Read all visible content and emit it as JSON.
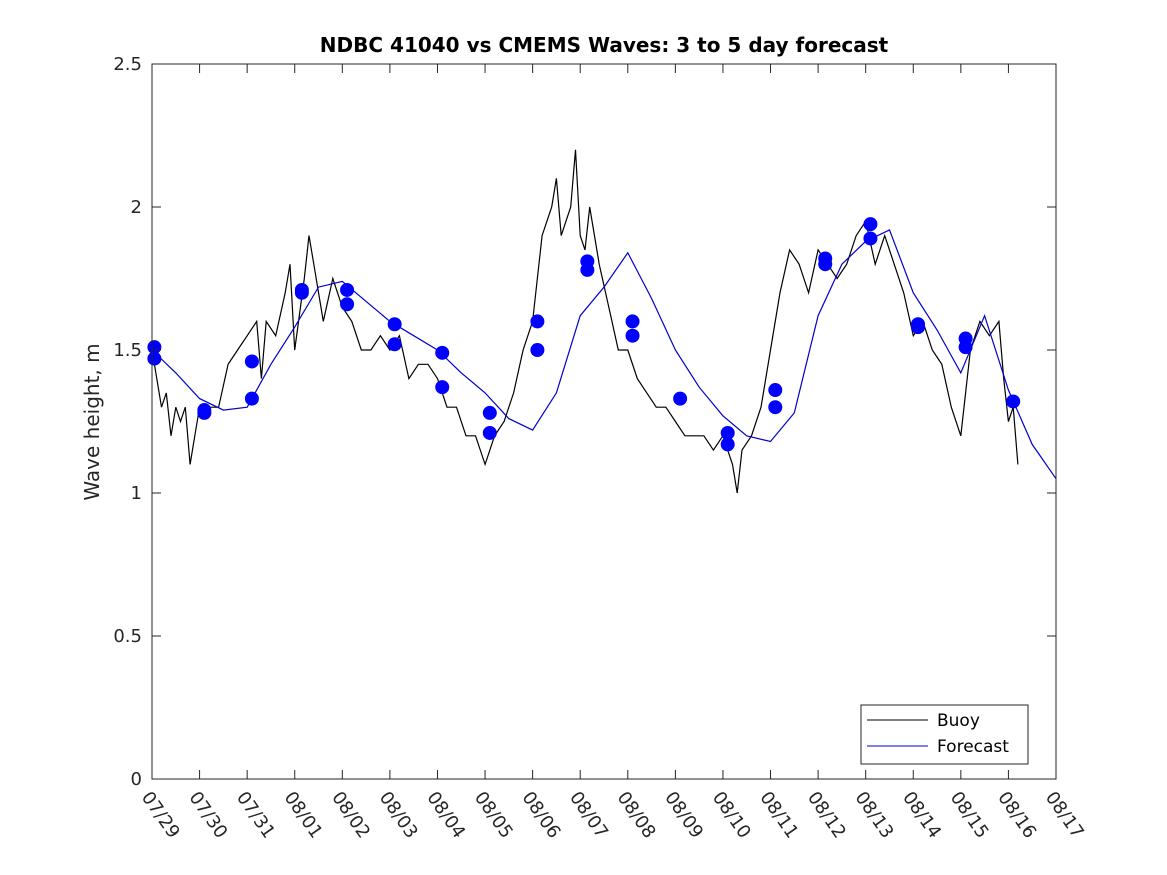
{
  "chart_data": {
    "type": "line",
    "title": "NDBC 41040 vs CMEMS Waves: 3 to 5 day forecast",
    "ylabel": "Wave height, m",
    "xlabel": "",
    "ylim": [
      0,
      2.5
    ],
    "y_ticks": [
      0,
      0.5,
      1,
      1.5,
      2,
      2.5
    ],
    "y_tick_labels": [
      "0",
      "0.5",
      "1",
      "1.5",
      "2",
      "2.5"
    ],
    "x_range_days": [
      0,
      19
    ],
    "x_ticks": [
      "07/29",
      "07/30",
      "07/31",
      "08/01",
      "08/02",
      "08/03",
      "08/04",
      "08/05",
      "08/06",
      "08/07",
      "08/08",
      "08/09",
      "08/10",
      "08/11",
      "08/12",
      "08/13",
      "08/14",
      "08/15",
      "08/16",
      "08/17"
    ],
    "grid": false,
    "legend_position": "bottom-right",
    "legend": [
      {
        "label": "Buoy",
        "color": "#000000"
      },
      {
        "label": "Forecast",
        "color": "#0000cc"
      }
    ],
    "series": [
      {
        "name": "Buoy",
        "color": "#000000",
        "x": [
          0,
          0.1,
          0.2,
          0.3,
          0.4,
          0.5,
          0.6,
          0.7,
          0.8,
          0.9,
          1.0,
          1.2,
          1.4,
          1.6,
          1.8,
          2.0,
          2.2,
          2.3,
          2.4,
          2.6,
          2.8,
          2.9,
          3.0,
          3.2,
          3.3,
          3.4,
          3.6,
          3.8,
          4.0,
          4.2,
          4.4,
          4.6,
          4.8,
          5.0,
          5.2,
          5.4,
          5.6,
          5.8,
          6.0,
          6.2,
          6.4,
          6.6,
          6.8,
          7.0,
          7.2,
          7.4,
          7.6,
          7.8,
          8.0,
          8.2,
          8.4,
          8.5,
          8.6,
          8.8,
          8.9,
          9.0,
          9.1,
          9.2,
          9.4,
          9.6,
          9.8,
          10.0,
          10.2,
          10.4,
          10.6,
          10.8,
          11.0,
          11.2,
          11.4,
          11.6,
          11.8,
          12.0,
          12.2,
          12.3,
          12.4,
          12.6,
          12.8,
          13.0,
          13.2,
          13.4,
          13.6,
          13.8,
          14.0,
          14.2,
          14.4,
          14.6,
          14.8,
          15.0,
          15.2,
          15.4,
          15.6,
          15.8,
          16.0,
          16.2,
          16.4,
          16.6,
          16.8,
          17.0,
          17.2,
          17.4,
          17.6,
          17.8,
          17.9,
          18.0,
          18.1,
          18.2
        ],
        "y": [
          1.5,
          1.4,
          1.3,
          1.35,
          1.2,
          1.3,
          1.25,
          1.3,
          1.1,
          1.2,
          1.3,
          1.3,
          1.3,
          1.45,
          1.5,
          1.55,
          1.6,
          1.4,
          1.6,
          1.55,
          1.7,
          1.8,
          1.5,
          1.75,
          1.9,
          1.8,
          1.6,
          1.75,
          1.65,
          1.6,
          1.5,
          1.5,
          1.55,
          1.5,
          1.55,
          1.4,
          1.45,
          1.45,
          1.4,
          1.3,
          1.3,
          1.2,
          1.2,
          1.1,
          1.2,
          1.25,
          1.35,
          1.5,
          1.6,
          1.9,
          2.0,
          2.1,
          1.9,
          2.0,
          2.2,
          1.9,
          1.85,
          2.0,
          1.8,
          1.65,
          1.5,
          1.5,
          1.4,
          1.35,
          1.3,
          1.3,
          1.25,
          1.2,
          1.2,
          1.2,
          1.15,
          1.2,
          1.1,
          1.0,
          1.15,
          1.2,
          1.3,
          1.5,
          1.7,
          1.85,
          1.8,
          1.7,
          1.85,
          1.8,
          1.75,
          1.8,
          1.9,
          1.95,
          1.8,
          1.9,
          1.8,
          1.7,
          1.55,
          1.6,
          1.5,
          1.45,
          1.3,
          1.2,
          1.5,
          1.6,
          1.55,
          1.6,
          1.4,
          1.25,
          1.3,
          1.1
        ]
      },
      {
        "name": "Forecast",
        "color": "#0000cc",
        "x": [
          0,
          0.5,
          1,
          1.5,
          2,
          2.5,
          3,
          3.5,
          4,
          4.5,
          5,
          5.5,
          6,
          6.5,
          7,
          7.5,
          8,
          8.5,
          9,
          9.5,
          10,
          10.5,
          11,
          11.5,
          12,
          12.5,
          13,
          13.5,
          14,
          14.5,
          15,
          15.5,
          16,
          16.5,
          17,
          17.5,
          18,
          18.5,
          19
        ],
        "y": [
          1.5,
          1.42,
          1.33,
          1.29,
          1.3,
          1.45,
          1.58,
          1.72,
          1.74,
          1.67,
          1.6,
          1.55,
          1.5,
          1.42,
          1.35,
          1.26,
          1.22,
          1.35,
          1.62,
          1.72,
          1.84,
          1.68,
          1.5,
          1.37,
          1.27,
          1.2,
          1.18,
          1.28,
          1.62,
          1.8,
          1.88,
          1.92,
          1.7,
          1.57,
          1.42,
          1.62,
          1.36,
          1.17,
          1.05
        ]
      }
    ],
    "forecast_markers": {
      "x": [
        0.05,
        0.05,
        1.1,
        1.1,
        2.1,
        2.1,
        3.15,
        3.15,
        4.1,
        4.1,
        5.1,
        5.1,
        6.1,
        6.1,
        7.1,
        7.1,
        8.1,
        8.1,
        9.15,
        9.15,
        10.1,
        10.1,
        11.1,
        12.1,
        12.1,
        13.1,
        13.1,
        14.15,
        14.15,
        15.1,
        15.1,
        16.1,
        16.1,
        17.1,
        17.1,
        18.1
      ],
      "y": [
        1.51,
        1.47,
        1.29,
        1.28,
        1.46,
        1.33,
        1.71,
        1.7,
        1.71,
        1.66,
        1.59,
        1.52,
        1.49,
        1.37,
        1.28,
        1.21,
        1.6,
        1.5,
        1.81,
        1.78,
        1.6,
        1.55,
        1.33,
        1.21,
        1.17,
        1.36,
        1.3,
        1.82,
        1.8,
        1.94,
        1.89,
        1.59,
        1.58,
        1.54,
        1.51,
        1.32
      ]
    }
  }
}
